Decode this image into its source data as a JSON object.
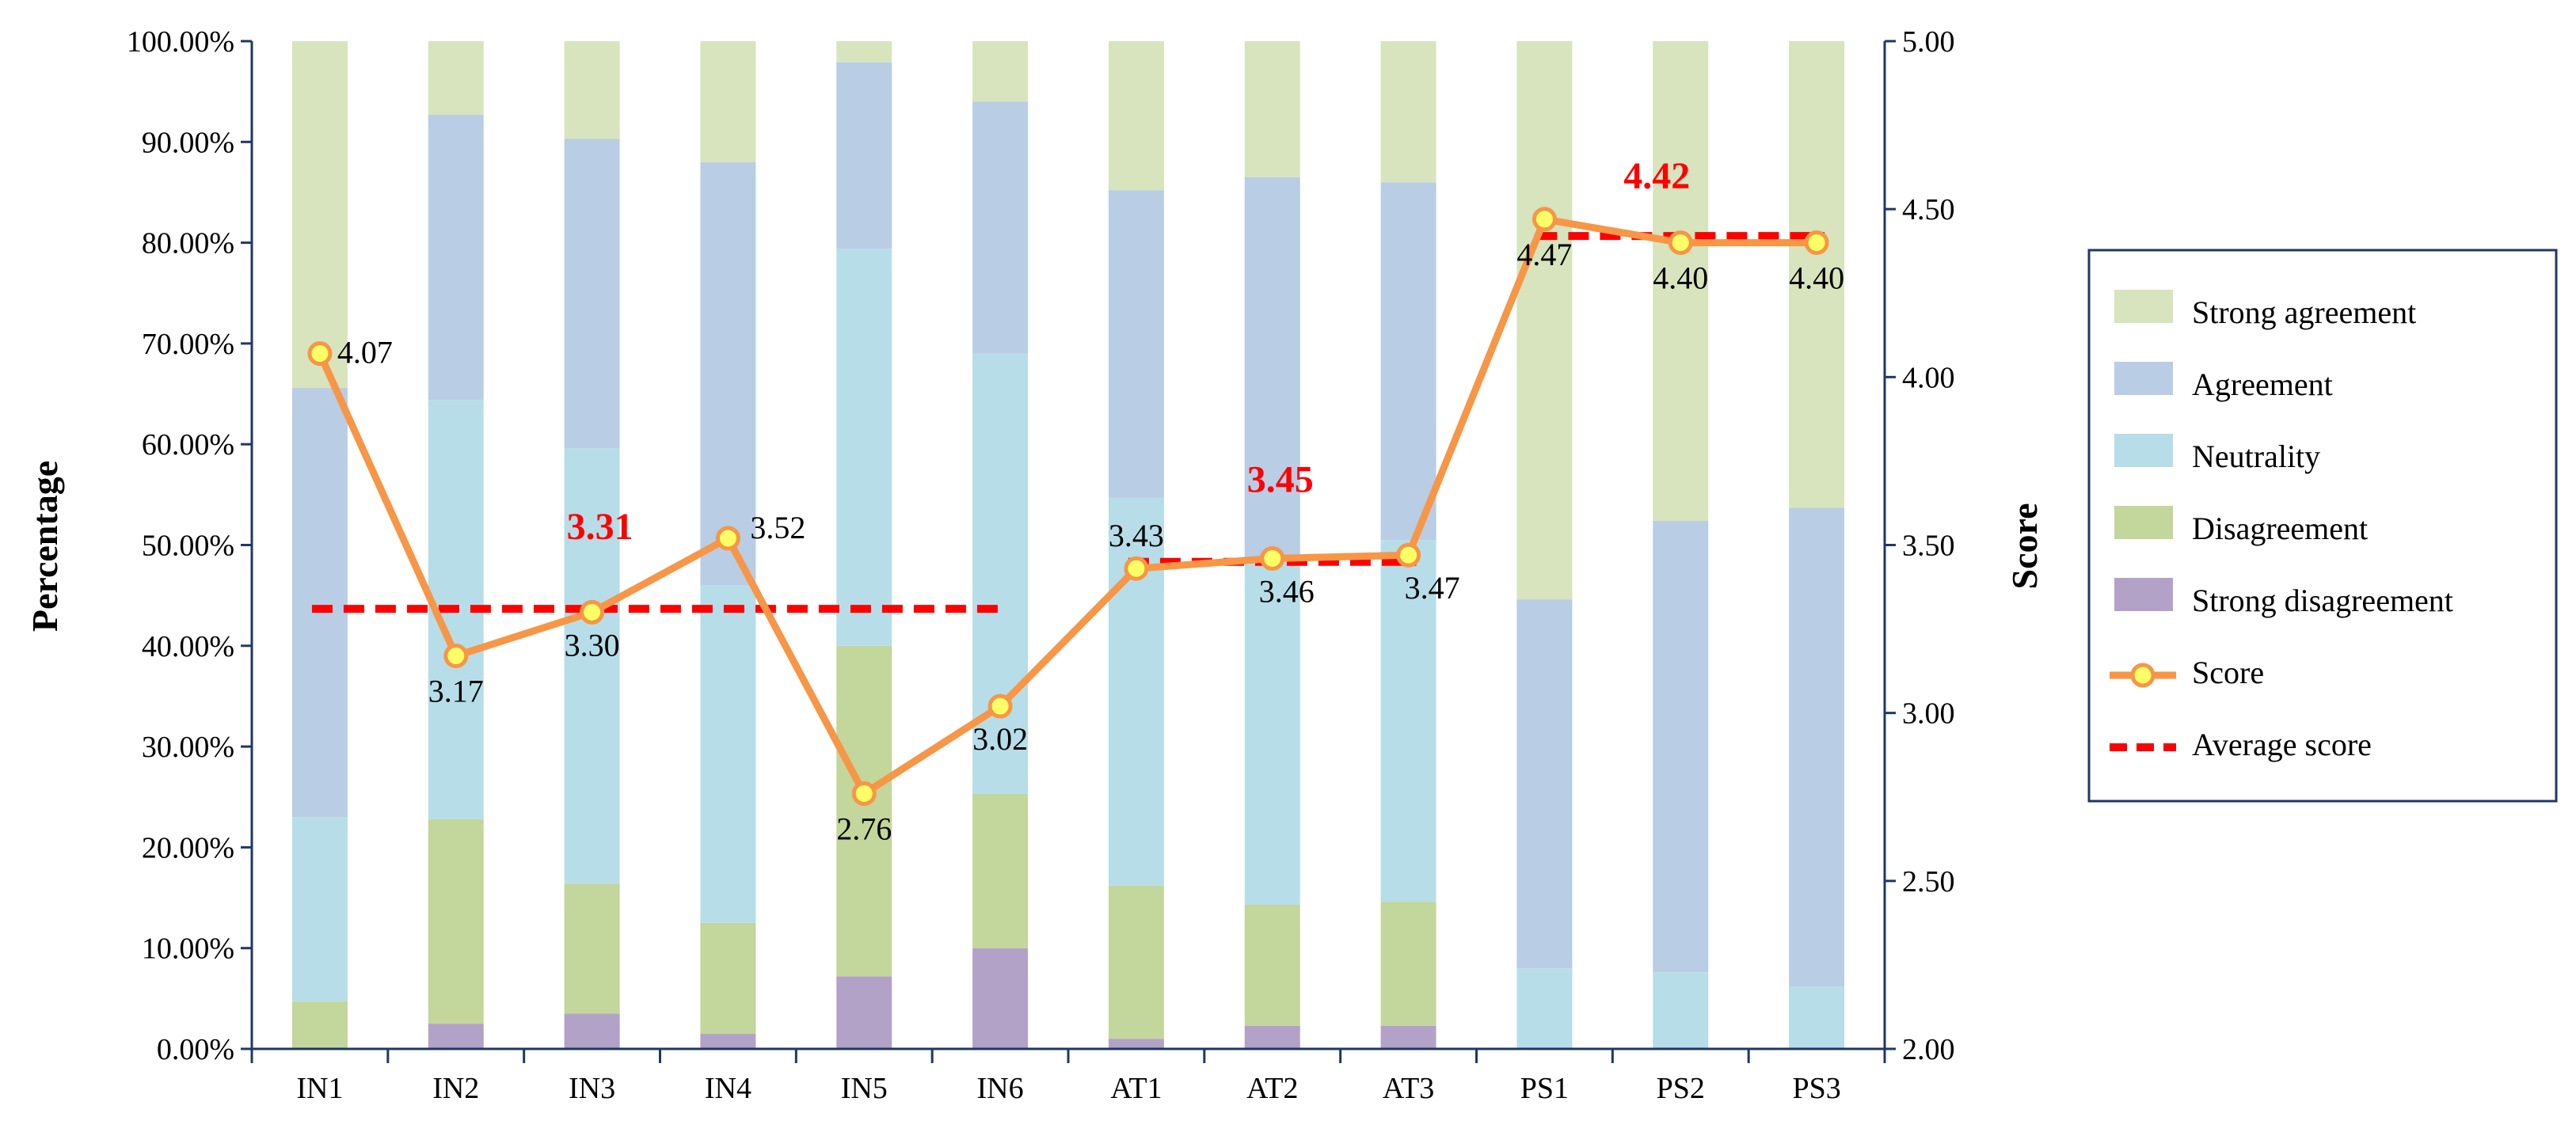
{
  "chart_data": {
    "type": "bar",
    "stacked": true,
    "categories": [
      "IN1",
      "IN2",
      "IN3",
      "IN4",
      "IN5",
      "IN6",
      "AT1",
      "AT2",
      "AT3",
      "PS1",
      "PS2",
      "PS3"
    ],
    "series": [
      {
        "name": "Strong disagreement",
        "color": "#b3a2c7",
        "values": [
          0.0,
          2.5,
          3.5,
          1.5,
          7.2,
          10.0,
          1.0,
          2.3,
          2.3,
          0.0,
          0.0,
          0.0
        ]
      },
      {
        "name": "Disagreement",
        "color": "#c3d69b",
        "values": [
          4.7,
          20.3,
          12.9,
          11.0,
          32.8,
          15.3,
          15.2,
          12.0,
          12.3,
          0.0,
          0.0,
          0.0
        ]
      },
      {
        "name": "Neutrality",
        "color": "#b7dde8",
        "values": [
          18.3,
          41.6,
          43.2,
          33.5,
          39.4,
          43.7,
          38.5,
          34.5,
          35.9,
          8.0,
          7.6,
          6.2
        ]
      },
      {
        "name": "Agreement",
        "color": "#b9cde5",
        "values": [
          42.6,
          28.3,
          30.7,
          42.0,
          18.5,
          25.0,
          30.5,
          37.7,
          35.5,
          36.6,
          44.8,
          47.5
        ]
      },
      {
        "name": "Strong agreement",
        "color": "#d7e4bd",
        "values": [
          34.4,
          7.3,
          9.7,
          12.0,
          2.1,
          6.0,
          14.8,
          13.5,
          14.0,
          55.4,
          47.6,
          46.3
        ]
      }
    ],
    "score": {
      "name": "Score",
      "color": "#f79646",
      "values": [
        4.07,
        3.17,
        3.3,
        3.52,
        2.76,
        3.02,
        3.43,
        3.46,
        3.47,
        4.47,
        4.4,
        4.4
      ],
      "labels": [
        "4.07",
        "3.17",
        "3.30",
        "3.52",
        "2.76",
        "3.02",
        "3.43",
        "3.46",
        "3.47",
        "4.47",
        "4.40",
        "4.40"
      ]
    },
    "average_score": {
      "name": "Average score",
      "color": "#ff0000",
      "groups": [
        {
          "from": "IN1",
          "to": "IN6",
          "value": 3.31,
          "label": "3.31"
        },
        {
          "from": "AT1",
          "to": "AT3",
          "value": 3.45,
          "label": "3.45"
        },
        {
          "from": "PS1",
          "to": "PS3",
          "value": 4.42,
          "label": "4.42"
        }
      ]
    },
    "ylabel": "Percentage",
    "y2label": "Score",
    "ylim": [
      0,
      100
    ],
    "y2lim": [
      2.0,
      5.0
    ],
    "yticks": [
      "0.00%",
      "10.00%",
      "20.00%",
      "30.00%",
      "40.00%",
      "50.00%",
      "60.00%",
      "70.00%",
      "80.00%",
      "90.00%",
      "100.00%"
    ],
    "y2ticks": [
      "2.00",
      "2.50",
      "3.00",
      "3.50",
      "4.00",
      "4.50",
      "5.00"
    ],
    "legend": {
      "position": "right",
      "items": [
        "Strong agreement",
        "Agreement",
        "Neutrality",
        "Disagreement",
        "Strong disagreement",
        "Score",
        "Average score"
      ]
    }
  }
}
